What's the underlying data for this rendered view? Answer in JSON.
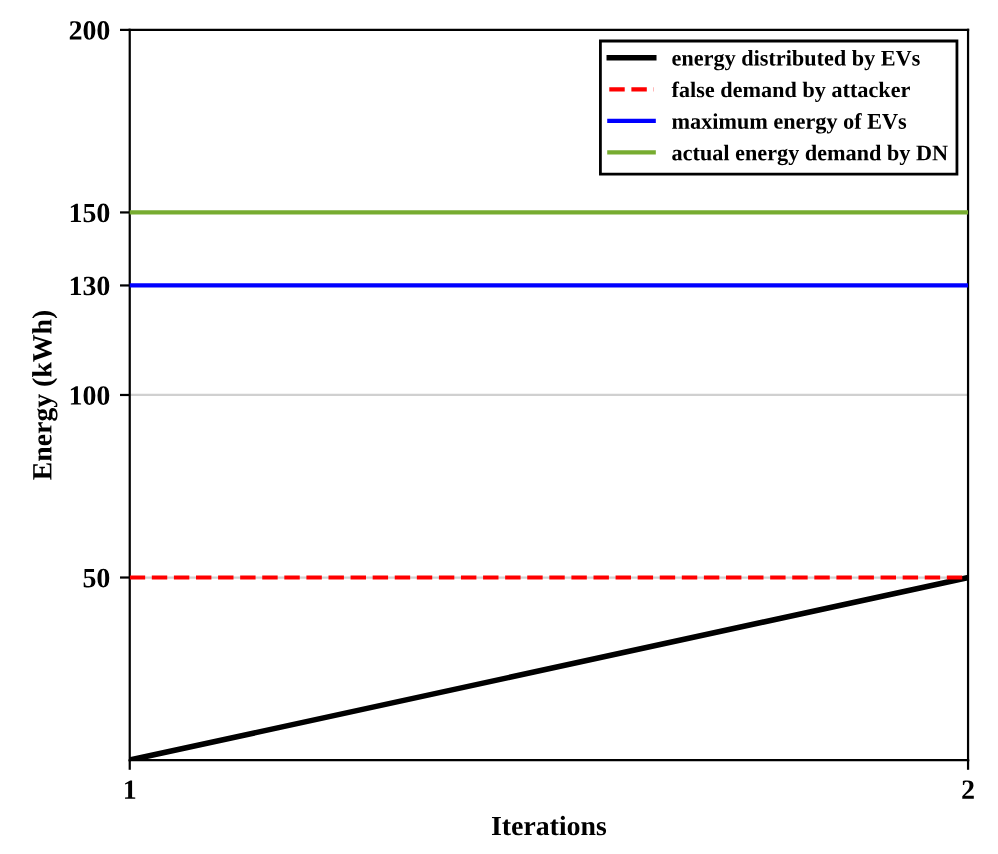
{
  "chart_data": {
    "type": "line",
    "xlabel": "Iterations",
    "ylabel": "Energy (kWh)",
    "x": [
      1,
      2
    ],
    "series": [
      {
        "name": "energy distributed by EVs",
        "color": "#000000",
        "values": [
          0,
          50
        ],
        "line_style": "solid"
      },
      {
        "name": "false demand by attacker",
        "color": "#ff0000",
        "values": [
          50,
          50
        ],
        "line_style": "dashed"
      },
      {
        "name": "maximum energy of EVs",
        "color": "#0000ff",
        "values": [
          130,
          130
        ],
        "line_style": "solid"
      },
      {
        "name": "actual energy demand by DN",
        "color": "#77ac30",
        "values": [
          150,
          150
        ],
        "line_style": "solid"
      }
    ],
    "xlim": [
      1,
      2
    ],
    "ylim": [
      0,
      200
    ],
    "xticks": [
      1,
      2
    ],
    "yticks": [
      50,
      100,
      130,
      150,
      200
    ],
    "grid": "y",
    "legend": "top right"
  }
}
